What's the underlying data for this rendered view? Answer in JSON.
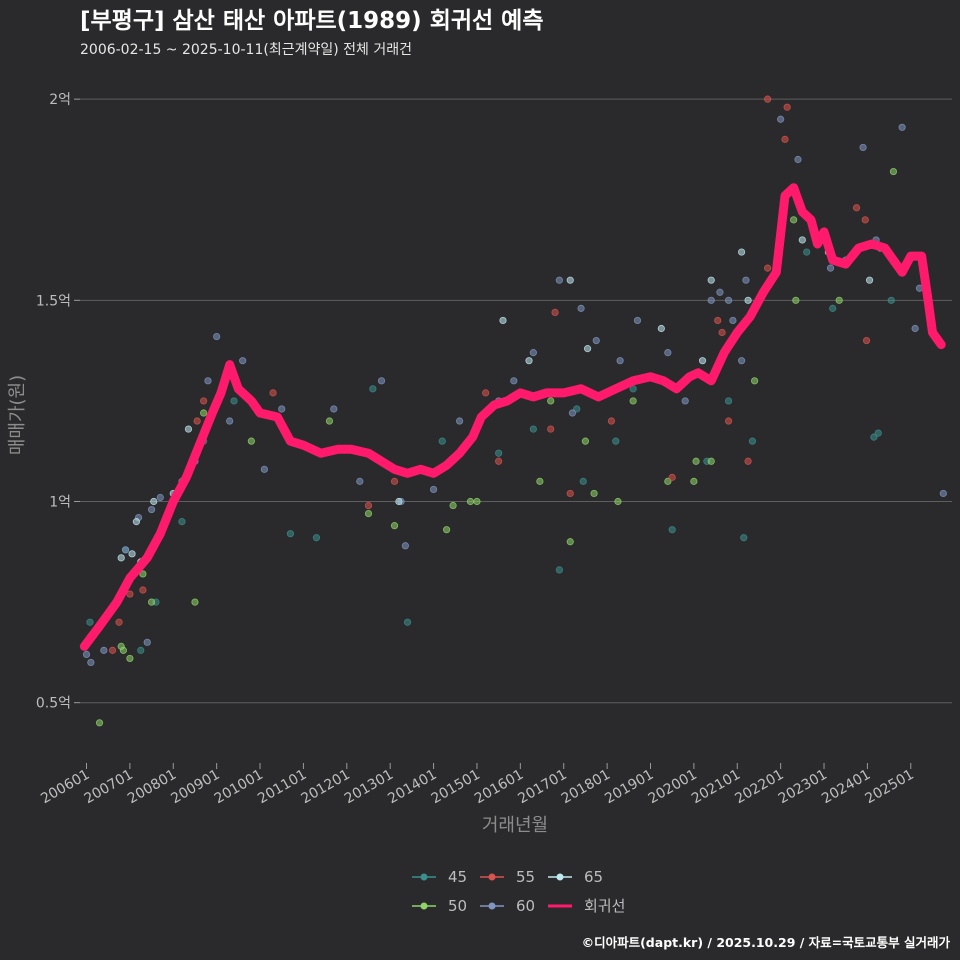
{
  "chart_data": {
    "type": "scatter",
    "title": "[부평구] 삼산 태산 아파트(1989) 회귀선 예측",
    "subtitle": "2006-02-15 ~ 2025-10-11(최근계약일) 전체 거래건",
    "xlabel": "거래년월",
    "ylabel": "매매가(원)",
    "caption": "©디아파트(dapt.kr) / 2025.10.29 / 자료=국토교통부 실거래가",
    "x_range": [
      2005.85,
      2025.95
    ],
    "ylim": [
      0.37,
      2.06
    ],
    "x_ticks": [
      {
        "label": "200601",
        "value": 2006.0
      },
      {
        "label": "200701",
        "value": 2007.0
      },
      {
        "label": "200801",
        "value": 2008.0
      },
      {
        "label": "200901",
        "value": 2009.0
      },
      {
        "label": "201001",
        "value": 2010.0
      },
      {
        "label": "201101",
        "value": 2011.0
      },
      {
        "label": "201201",
        "value": 2012.0
      },
      {
        "label": "201301",
        "value": 2013.0
      },
      {
        "label": "201401",
        "value": 2014.0
      },
      {
        "label": "201501",
        "value": 2015.0
      },
      {
        "label": "201601",
        "value": 2016.0
      },
      {
        "label": "201701",
        "value": 2017.0
      },
      {
        "label": "201801",
        "value": 2018.0
      },
      {
        "label": "201901",
        "value": 2019.0
      },
      {
        "label": "202001",
        "value": 2020.0
      },
      {
        "label": "202101",
        "value": 2021.0
      },
      {
        "label": "202201",
        "value": 2022.0
      },
      {
        "label": "202301",
        "value": 2023.0
      },
      {
        "label": "202401",
        "value": 2024.0
      },
      {
        "label": "202501",
        "value": 2025.0
      }
    ],
    "y_ticks": [
      {
        "label": "0.5억",
        "value": 0.5
      },
      {
        "label": "1억",
        "value": 1.0
      },
      {
        "label": "1.5억",
        "value": 1.5
      },
      {
        "label": "2억",
        "value": 2.0
      }
    ],
    "legend": [
      {
        "label": "45",
        "color": "#3b8f8c",
        "kind": "point"
      },
      {
        "label": "55",
        "color": "#d9534f",
        "kind": "point"
      },
      {
        "label": "65",
        "color": "#bfe8f0",
        "kind": "point"
      },
      {
        "label": "50",
        "color": "#8fd36a",
        "kind": "point"
      },
      {
        "label": "60",
        "color": "#8096c0",
        "kind": "point"
      },
      {
        "label": "회귀선",
        "color": "#ff1a6c",
        "kind": "line"
      }
    ],
    "series": [
      {
        "name": "45",
        "color": "#3b8f8c",
        "points": [
          [
            2006.08,
            0.7
          ],
          [
            2006.9,
            0.88
          ],
          [
            2007.25,
            0.63
          ],
          [
            2007.6,
            0.75
          ],
          [
            2008.2,
            0.95
          ],
          [
            2008.7,
            1.15
          ],
          [
            2009.4,
            1.25
          ],
          [
            2010.7,
            0.92
          ],
          [
            2011.3,
            0.91
          ],
          [
            2012.6,
            1.28
          ],
          [
            2013.4,
            0.7
          ],
          [
            2014.2,
            1.15
          ],
          [
            2015.5,
            1.12
          ],
          [
            2016.3,
            1.18
          ],
          [
            2016.9,
            0.83
          ],
          [
            2017.3,
            1.23
          ],
          [
            2017.45,
            1.05
          ],
          [
            2018.2,
            1.15
          ],
          [
            2018.6,
            1.28
          ],
          [
            2019.5,
            0.93
          ],
          [
            2020.3,
            1.1
          ],
          [
            2020.8,
            1.25
          ],
          [
            2021.15,
            0.91
          ],
          [
            2021.35,
            1.15
          ],
          [
            2022.6,
            1.62
          ],
          [
            2023.2,
            1.48
          ],
          [
            2024.15,
            1.16
          ],
          [
            2024.25,
            1.17
          ],
          [
            2024.55,
            1.5
          ]
        ]
      },
      {
        "name": "50",
        "color": "#8fd36a",
        "points": [
          [
            2006.3,
            0.45
          ],
          [
            2006.8,
            0.64
          ],
          [
            2006.85,
            0.63
          ],
          [
            2007.0,
            0.61
          ],
          [
            2007.3,
            0.82
          ],
          [
            2007.5,
            0.75
          ],
          [
            2007.7,
            0.92
          ],
          [
            2008.5,
            0.75
          ],
          [
            2008.7,
            1.22
          ],
          [
            2009.8,
            1.15
          ],
          [
            2011.6,
            1.2
          ],
          [
            2012.5,
            0.97
          ],
          [
            2013.1,
            0.94
          ],
          [
            2014.3,
            0.93
          ],
          [
            2014.45,
            0.99
          ],
          [
            2014.85,
            1.0
          ],
          [
            2015.0,
            1.0
          ],
          [
            2016.45,
            1.05
          ],
          [
            2016.7,
            1.25
          ],
          [
            2017.15,
            0.9
          ],
          [
            2017.5,
            1.15
          ],
          [
            2017.7,
            1.02
          ],
          [
            2018.25,
            1.0
          ],
          [
            2018.6,
            1.25
          ],
          [
            2019.4,
            1.05
          ],
          [
            2020.0,
            1.05
          ],
          [
            2020.05,
            1.1
          ],
          [
            2020.4,
            1.1
          ],
          [
            2021.4,
            1.3
          ],
          [
            2022.3,
            1.7
          ],
          [
            2022.35,
            1.5
          ],
          [
            2023.35,
            1.5
          ],
          [
            2024.6,
            1.82
          ]
        ]
      },
      {
        "name": "55",
        "color": "#d9534f",
        "points": [
          [
            2006.6,
            0.63
          ],
          [
            2006.75,
            0.7
          ],
          [
            2007.0,
            0.77
          ],
          [
            2007.3,
            0.78
          ],
          [
            2008.55,
            1.2
          ],
          [
            2008.7,
            1.25
          ],
          [
            2010.3,
            1.27
          ],
          [
            2012.5,
            0.99
          ],
          [
            2013.1,
            1.05
          ],
          [
            2015.2,
            1.27
          ],
          [
            2015.5,
            1.1
          ],
          [
            2016.7,
            1.18
          ],
          [
            2016.8,
            1.47
          ],
          [
            2017.15,
            1.02
          ],
          [
            2018.1,
            1.2
          ],
          [
            2019.5,
            1.06
          ],
          [
            2020.55,
            1.45
          ],
          [
            2020.65,
            1.42
          ],
          [
            2021.25,
            1.1
          ],
          [
            2021.7,
            1.58
          ],
          [
            2022.1,
            1.9
          ],
          [
            2022.15,
            1.98
          ],
          [
            2023.75,
            1.73
          ],
          [
            2023.95,
            1.7
          ],
          [
            2023.98,
            1.4
          ],
          [
            2021.7,
            2.0
          ],
          [
            2020.8,
            1.2
          ]
        ]
      },
      {
        "name": "60",
        "color": "#8096c0",
        "points": [
          [
            2006.0,
            0.62
          ],
          [
            2006.1,
            0.6
          ],
          [
            2006.4,
            0.63
          ],
          [
            2006.9,
            0.88
          ],
          [
            2007.2,
            0.96
          ],
          [
            2007.4,
            0.65
          ],
          [
            2007.5,
            0.98
          ],
          [
            2007.7,
            1.01
          ],
          [
            2008.2,
            1.05
          ],
          [
            2008.5,
            1.1
          ],
          [
            2008.8,
            1.3
          ],
          [
            2009.0,
            1.41
          ],
          [
            2009.3,
            1.2
          ],
          [
            2009.6,
            1.35
          ],
          [
            2010.1,
            1.08
          ],
          [
            2010.5,
            1.23
          ],
          [
            2011.7,
            1.23
          ],
          [
            2012.3,
            1.05
          ],
          [
            2012.8,
            1.3
          ],
          [
            2013.25,
            1.0
          ],
          [
            2013.35,
            0.89
          ],
          [
            2014.0,
            1.03
          ],
          [
            2014.6,
            1.2
          ],
          [
            2015.5,
            1.25
          ],
          [
            2015.85,
            1.3
          ],
          [
            2016.3,
            1.37
          ],
          [
            2016.9,
            1.55
          ],
          [
            2017.2,
            1.22
          ],
          [
            2017.4,
            1.48
          ],
          [
            2017.75,
            1.4
          ],
          [
            2018.3,
            1.35
          ],
          [
            2018.7,
            1.45
          ],
          [
            2019.4,
            1.37
          ],
          [
            2019.8,
            1.25
          ],
          [
            2020.4,
            1.5
          ],
          [
            2020.6,
            1.52
          ],
          [
            2020.8,
            1.5
          ],
          [
            2020.9,
            1.45
          ],
          [
            2021.2,
            1.55
          ],
          [
            2021.4,
            1.48
          ],
          [
            2022.0,
            1.95
          ],
          [
            2022.4,
            1.85
          ],
          [
            2023.15,
            1.58
          ],
          [
            2023.5,
            1.6
          ],
          [
            2023.9,
            1.88
          ],
          [
            2024.2,
            1.65
          ],
          [
            2024.8,
            1.93
          ],
          [
            2025.1,
            1.43
          ],
          [
            2025.2,
            1.53
          ],
          [
            2025.75,
            1.02
          ],
          [
            2021.1,
            1.35
          ]
        ]
      },
      {
        "name": "65",
        "color": "#bfe8f0",
        "points": [
          [
            2006.8,
            0.86
          ],
          [
            2007.05,
            0.87
          ],
          [
            2007.15,
            0.95
          ],
          [
            2007.25,
            0.85
          ],
          [
            2007.55,
            1.0
          ],
          [
            2008.0,
            1.02
          ],
          [
            2008.35,
            1.18
          ],
          [
            2009.35,
            1.32
          ],
          [
            2013.2,
            1.0
          ],
          [
            2015.6,
            1.45
          ],
          [
            2016.2,
            1.35
          ],
          [
            2017.15,
            1.55
          ],
          [
            2017.55,
            1.38
          ],
          [
            2019.25,
            1.43
          ],
          [
            2020.2,
            1.35
          ],
          [
            2020.4,
            1.55
          ],
          [
            2021.1,
            1.62
          ],
          [
            2021.25,
            1.5
          ],
          [
            2022.5,
            1.65
          ],
          [
            2023.1,
            1.62
          ],
          [
            2024.05,
            1.55
          ],
          [
            2024.3,
            1.63
          ]
        ]
      }
    ],
    "regression_line": [
      [
        2005.95,
        0.64
      ],
      [
        2006.3,
        0.69
      ],
      [
        2006.7,
        0.75
      ],
      [
        2007.0,
        0.81
      ],
      [
        2007.4,
        0.86
      ],
      [
        2007.7,
        0.92
      ],
      [
        2008.0,
        1.0
      ],
      [
        2008.3,
        1.06
      ],
      [
        2008.6,
        1.14
      ],
      [
        2008.9,
        1.22
      ],
      [
        2009.1,
        1.27
      ],
      [
        2009.3,
        1.34
      ],
      [
        2009.5,
        1.28
      ],
      [
        2009.8,
        1.25
      ],
      [
        2010.0,
        1.22
      ],
      [
        2010.4,
        1.21
      ],
      [
        2010.7,
        1.15
      ],
      [
        2011.0,
        1.14
      ],
      [
        2011.4,
        1.12
      ],
      [
        2011.8,
        1.13
      ],
      [
        2012.1,
        1.13
      ],
      [
        2012.5,
        1.12
      ],
      [
        2012.8,
        1.1
      ],
      [
        2013.1,
        1.08
      ],
      [
        2013.4,
        1.07
      ],
      [
        2013.7,
        1.08
      ],
      [
        2014.0,
        1.07
      ],
      [
        2014.3,
        1.09
      ],
      [
        2014.6,
        1.12
      ],
      [
        2014.9,
        1.16
      ],
      [
        2015.1,
        1.21
      ],
      [
        2015.4,
        1.24
      ],
      [
        2015.7,
        1.25
      ],
      [
        2016.0,
        1.27
      ],
      [
        2016.3,
        1.26
      ],
      [
        2016.6,
        1.27
      ],
      [
        2017.0,
        1.27
      ],
      [
        2017.4,
        1.28
      ],
      [
        2017.8,
        1.26
      ],
      [
        2018.2,
        1.28
      ],
      [
        2018.6,
        1.3
      ],
      [
        2019.0,
        1.31
      ],
      [
        2019.3,
        1.3
      ],
      [
        2019.6,
        1.28
      ],
      [
        2019.9,
        1.31
      ],
      [
        2020.1,
        1.32
      ],
      [
        2020.4,
        1.3
      ],
      [
        2020.7,
        1.37
      ],
      [
        2021.0,
        1.42
      ],
      [
        2021.3,
        1.46
      ],
      [
        2021.6,
        1.52
      ],
      [
        2021.9,
        1.57
      ],
      [
        2022.1,
        1.76
      ],
      [
        2022.3,
        1.78
      ],
      [
        2022.5,
        1.72
      ],
      [
        2022.7,
        1.7
      ],
      [
        2022.85,
        1.64
      ],
      [
        2023.0,
        1.67
      ],
      [
        2023.2,
        1.6
      ],
      [
        2023.5,
        1.59
      ],
      [
        2023.8,
        1.63
      ],
      [
        2024.1,
        1.64
      ],
      [
        2024.4,
        1.63
      ],
      [
        2024.6,
        1.6
      ],
      [
        2024.8,
        1.57
      ],
      [
        2025.0,
        1.61
      ],
      [
        2025.25,
        1.61
      ],
      [
        2025.4,
        1.5
      ],
      [
        2025.5,
        1.42
      ],
      [
        2025.7,
        1.39
      ]
    ]
  }
}
